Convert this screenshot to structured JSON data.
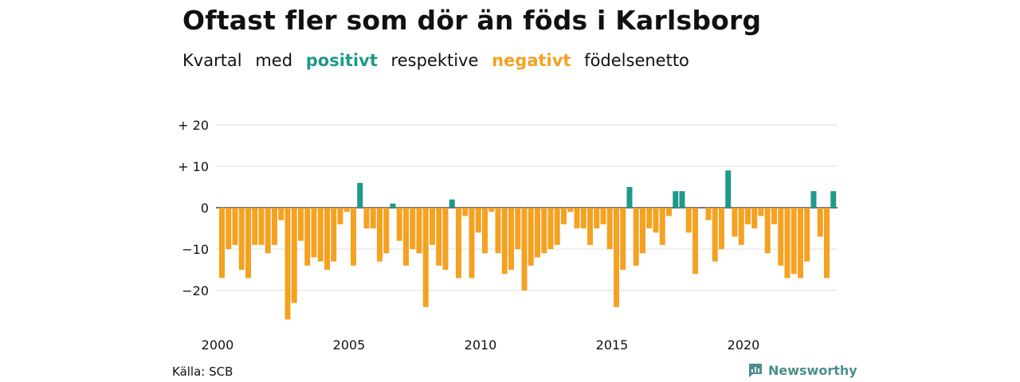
{
  "title": "Oftast fler som dör än föds i Karlsborg",
  "subtitle": {
    "part1": "Kvartal",
    "part2": "med",
    "positive": "positivt",
    "part3": "respektive",
    "negative": "negativt",
    "part4": "födelsenetto"
  },
  "source": "Källa: SCB",
  "logo": {
    "text": "Newsworthy",
    "icon": "newsworthy-logo-icon"
  },
  "colors": {
    "positive": "#1d9a88",
    "negative": "#f5a121",
    "grid": "#dddddd"
  },
  "chart_data": {
    "type": "bar",
    "xlabel": "",
    "ylabel": "",
    "ylim": [
      -27,
      20
    ],
    "y_ticks": [
      20,
      10,
      0,
      -10,
      -20
    ],
    "y_tick_labels": [
      "+ 20",
      "+ 10",
      "0",
      "−10",
      "−20"
    ],
    "x_tick_labels": [
      "2000",
      "2005",
      "2010",
      "2015",
      "2020"
    ],
    "start_year": 2000,
    "values": [
      -17,
      -10,
      -9,
      -15,
      -17,
      -9,
      -9,
      -11,
      -9,
      -3,
      -27,
      -23,
      -8,
      -14,
      -12,
      -13,
      -15,
      -13,
      -4,
      -1,
      -14,
      6,
      -5,
      -5,
      -13,
      -11,
      1,
      -8,
      -14,
      -10,
      -11,
      -24,
      -9,
      -14,
      -15,
      2,
      -17,
      -2,
      -17,
      -6,
      -11,
      -1,
      -11,
      -16,
      -15,
      -10,
      -20,
      -14,
      -12,
      -11,
      -10,
      -9,
      -4,
      -1,
      -5,
      -5,
      -9,
      -5,
      -4,
      -10,
      -24,
      -15,
      5,
      -14,
      -11,
      -5,
      -6,
      -9,
      -2,
      4,
      4,
      -6,
      -16,
      0,
      -3,
      -13,
      -10,
      9,
      -7,
      -9,
      -4,
      -5,
      -2,
      -11,
      -4,
      -14,
      -17,
      -16,
      -17,
      -13,
      4,
      -7,
      -17,
      4
    ],
    "grid": true,
    "legend": "none"
  }
}
